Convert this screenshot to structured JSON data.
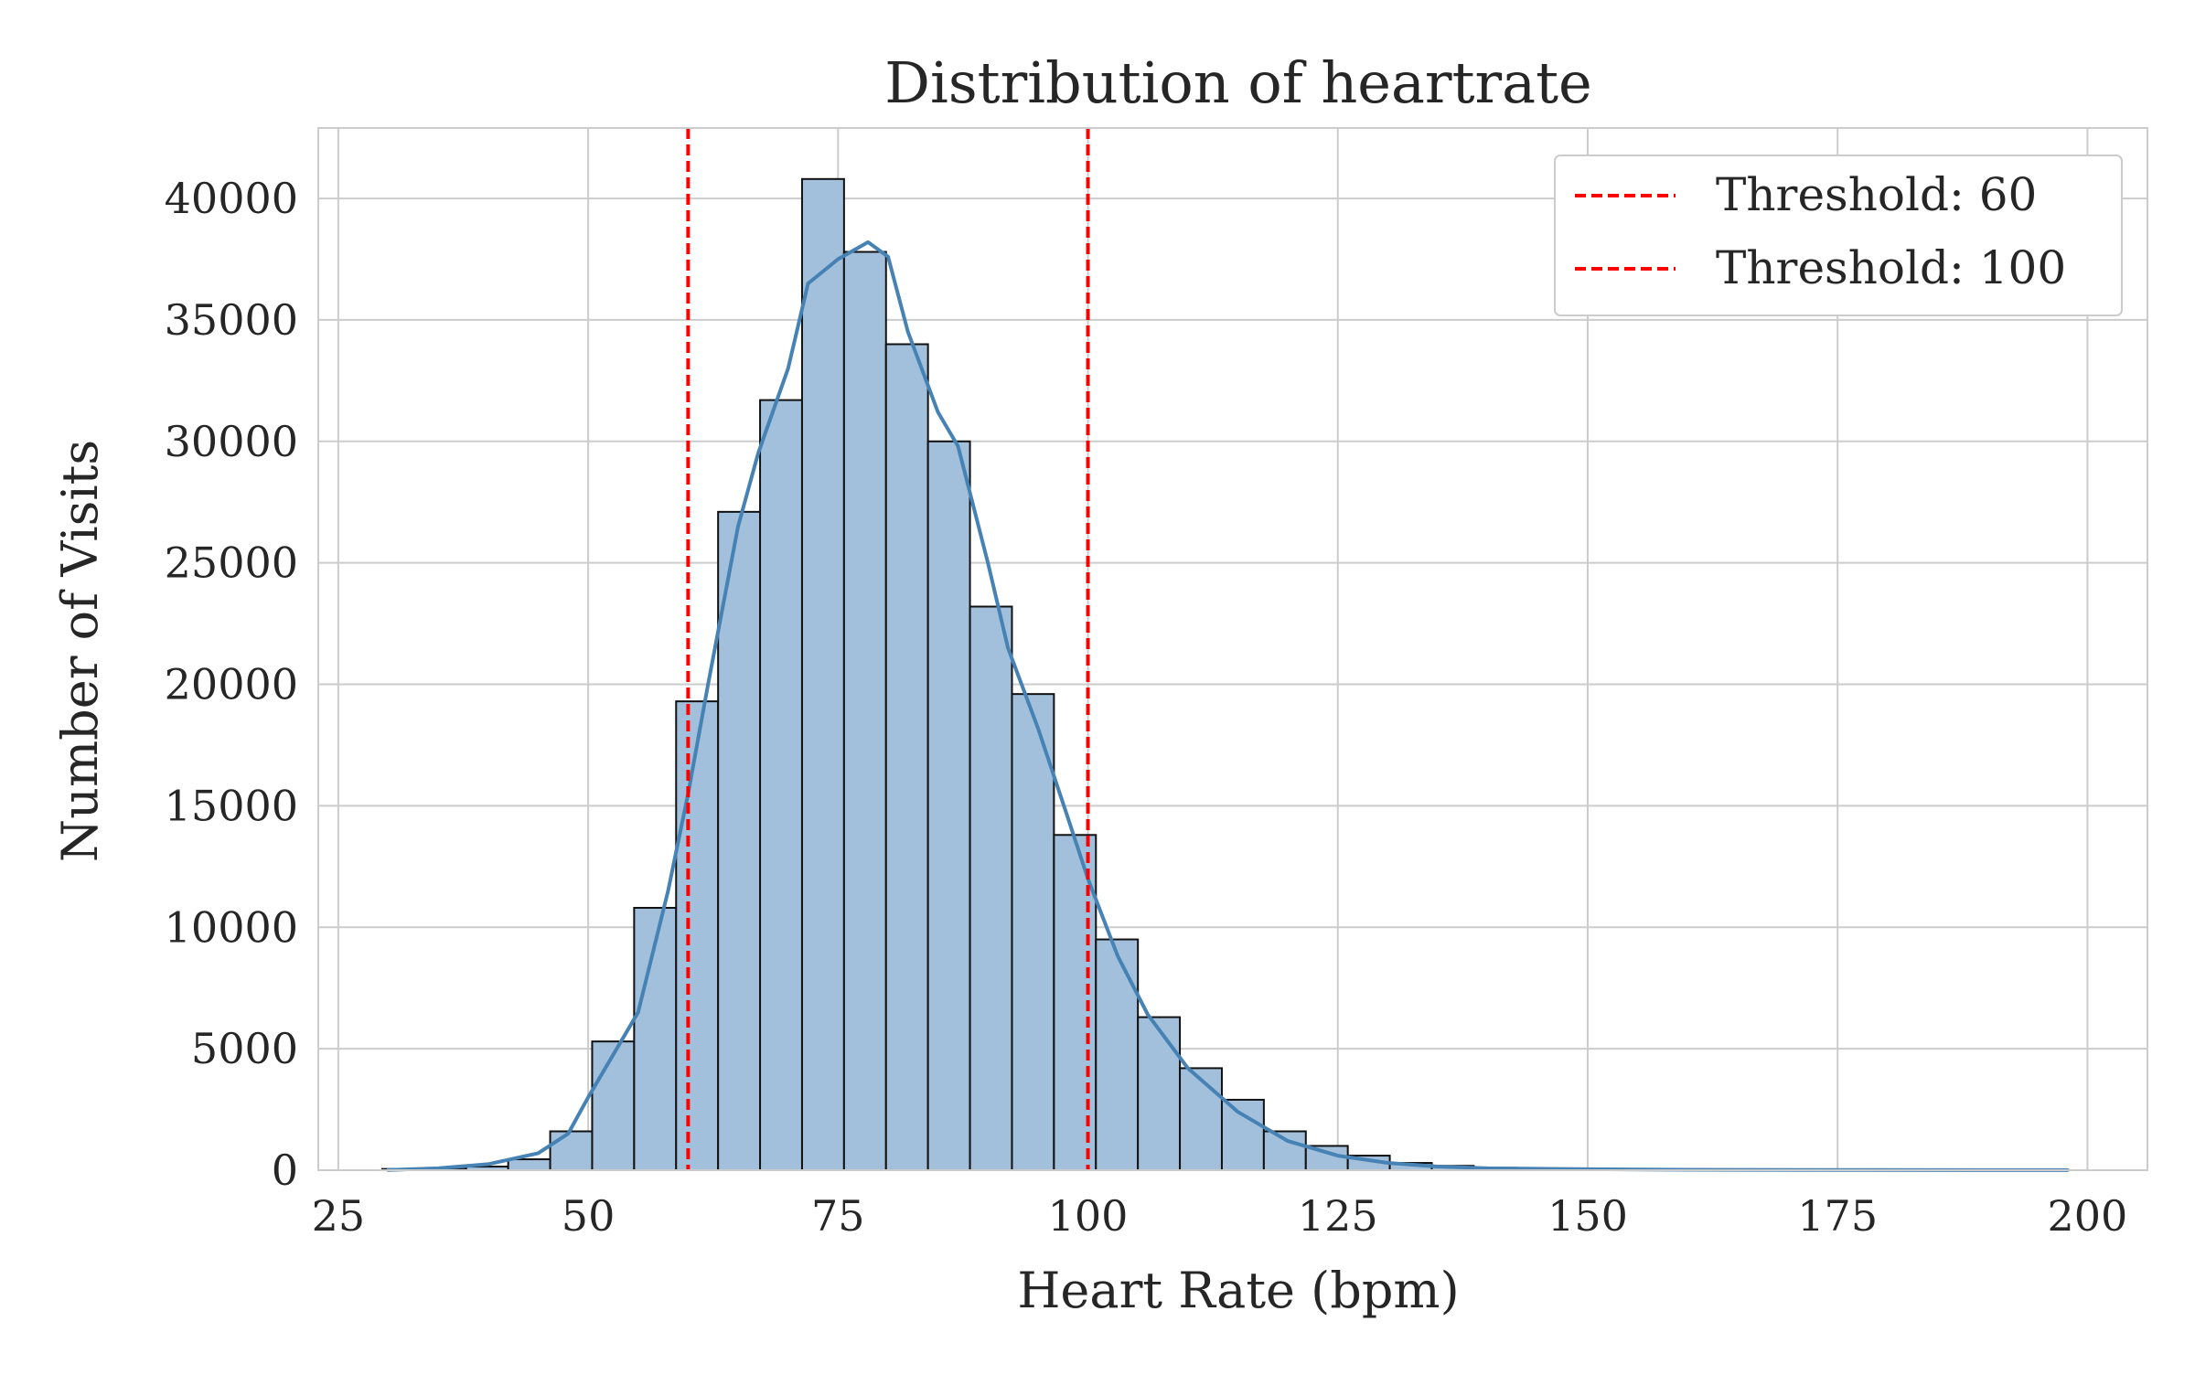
{
  "chart_data": {
    "type": "bar",
    "title": "Distribution of heartrate",
    "xlabel": "Heart Rate (bpm)",
    "ylabel": "Number of Visits",
    "xlim": [
      23,
      206
    ],
    "ylim": [
      0,
      42900
    ],
    "xticks": [
      25,
      50,
      75,
      100,
      125,
      150,
      175,
      200
    ],
    "yticks": [
      0,
      5000,
      10000,
      15000,
      20000,
      25000,
      30000,
      35000,
      40000
    ],
    "grid": true,
    "legend_position": "top-right",
    "bin_width": 4.2,
    "bins": [
      {
        "start": 29.4,
        "count": 50
      },
      {
        "start": 33.6,
        "count": 80
      },
      {
        "start": 37.8,
        "count": 150
      },
      {
        "start": 42.0,
        "count": 450
      },
      {
        "start": 46.2,
        "count": 1600
      },
      {
        "start": 50.4,
        "count": 5300
      },
      {
        "start": 54.6,
        "count": 10800
      },
      {
        "start": 58.8,
        "count": 19300
      },
      {
        "start": 63.0,
        "count": 27100
      },
      {
        "start": 67.2,
        "count": 31700
      },
      {
        "start": 71.4,
        "count": 40800
      },
      {
        "start": 75.6,
        "count": 37800
      },
      {
        "start": 79.8,
        "count": 34000
      },
      {
        "start": 84.0,
        "count": 30000
      },
      {
        "start": 88.2,
        "count": 23200
      },
      {
        "start": 92.4,
        "count": 19600
      },
      {
        "start": 96.6,
        "count": 13800
      },
      {
        "start": 100.8,
        "count": 9500
      },
      {
        "start": 105.0,
        "count": 6300
      },
      {
        "start": 109.2,
        "count": 4200
      },
      {
        "start": 113.4,
        "count": 2900
      },
      {
        "start": 117.6,
        "count": 1600
      },
      {
        "start": 121.8,
        "count": 1000
      },
      {
        "start": 126.0,
        "count": 600
      },
      {
        "start": 130.2,
        "count": 300
      },
      {
        "start": 134.4,
        "count": 180
      },
      {
        "start": 138.6,
        "count": 100
      },
      {
        "start": 142.8,
        "count": 70
      },
      {
        "start": 147.0,
        "count": 50
      },
      {
        "start": 151.2,
        "count": 40
      },
      {
        "start": 155.4,
        "count": 30
      },
      {
        "start": 159.6,
        "count": 25
      },
      {
        "start": 163.8,
        "count": 20
      },
      {
        "start": 168.0,
        "count": 15
      },
      {
        "start": 172.2,
        "count": 12
      },
      {
        "start": 176.4,
        "count": 10
      },
      {
        "start": 180.6,
        "count": 10
      },
      {
        "start": 184.8,
        "count": 8
      },
      {
        "start": 189.0,
        "count": 6
      },
      {
        "start": 193.2,
        "count": 5
      }
    ],
    "kde": {
      "x": [
        30,
        35,
        40,
        45,
        48,
        50,
        55,
        58,
        60,
        62,
        65,
        67,
        70,
        72,
        75,
        78,
        80,
        82,
        85,
        87,
        90,
        92,
        95,
        98,
        100,
        103,
        106,
        110,
        115,
        120,
        125,
        130,
        135,
        140,
        150,
        160,
        175,
        198
      ],
      "y": [
        10,
        80,
        250,
        700,
        1500,
        3000,
        6500,
        11500,
        15500,
        20000,
        26500,
        29500,
        33000,
        36500,
        37500,
        38200,
        37600,
        34500,
        31200,
        29800,
        25000,
        21500,
        18200,
        14500,
        12000,
        8800,
        6400,
        4200,
        2400,
        1200,
        600,
        300,
        150,
        80,
        40,
        20,
        10,
        5
      ]
    },
    "thresholds": [
      {
        "value": 60,
        "label": "Threshold: 60"
      },
      {
        "value": 100,
        "label": "Threshold: 100"
      }
    ],
    "colors": {
      "bar_fill": "#a2c0dc",
      "bar_edge": "#111111",
      "kde_line": "#4682b4",
      "threshold": "#ff0000",
      "grid": "#cccccc",
      "frame": "#cccccc"
    }
  }
}
